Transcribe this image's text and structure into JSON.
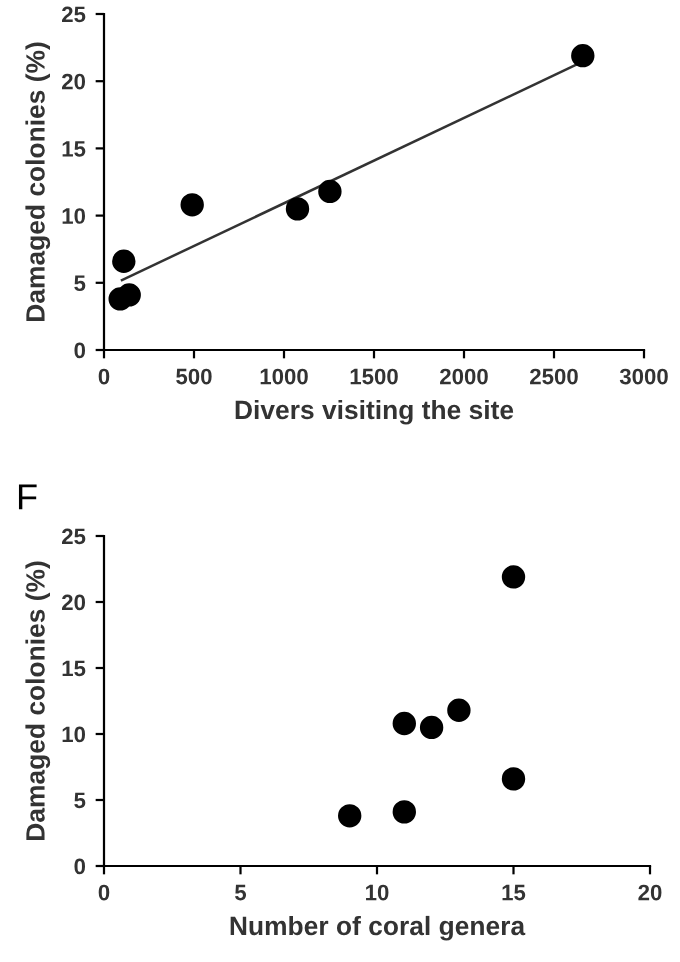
{
  "chart_data": [
    {
      "type": "scatter",
      "xlabel": "Divers visiting the site",
      "ylabel": "Damaged colonies (%)",
      "xlim": [
        0,
        3000
      ],
      "xticks": [
        0,
        500,
        1000,
        1500,
        2000,
        2500,
        3000
      ],
      "ylim": [
        0,
        25
      ],
      "yticks": [
        0,
        5,
        10,
        15,
        20,
        25
      ],
      "grid": false,
      "legend": false,
      "series": [
        {
          "marker": "circle",
          "color": "#000000",
          "x": [
            90,
            140,
            110,
            490,
            1075,
            1255,
            2660
          ],
          "values": [
            3.8,
            4.1,
            6.6,
            10.8,
            10.5,
            11.8,
            21.9
          ]
        },
        {
          "type": "line",
          "marker": "none",
          "color": "#333333",
          "x": [
            100,
            2650
          ],
          "values": [
            5.2,
            21.4
          ]
        }
      ]
    },
    {
      "type": "scatter",
      "title": "F",
      "xlabel": "Number of coral genera",
      "ylabel": "Damaged colonies (%)",
      "xlim": [
        0,
        20
      ],
      "xticks": [
        0,
        5,
        10,
        15,
        20
      ],
      "ylim": [
        0,
        25
      ],
      "yticks": [
        0,
        5,
        10,
        15,
        20,
        25
      ],
      "grid": false,
      "legend": false,
      "series": [
        {
          "marker": "circle",
          "color": "#000000",
          "x": [
            9,
            11,
            11,
            12,
            13,
            15,
            15
          ],
          "values": [
            3.8,
            4.1,
            10.8,
            10.5,
            11.8,
            6.6,
            21.9
          ]
        }
      ]
    }
  ]
}
